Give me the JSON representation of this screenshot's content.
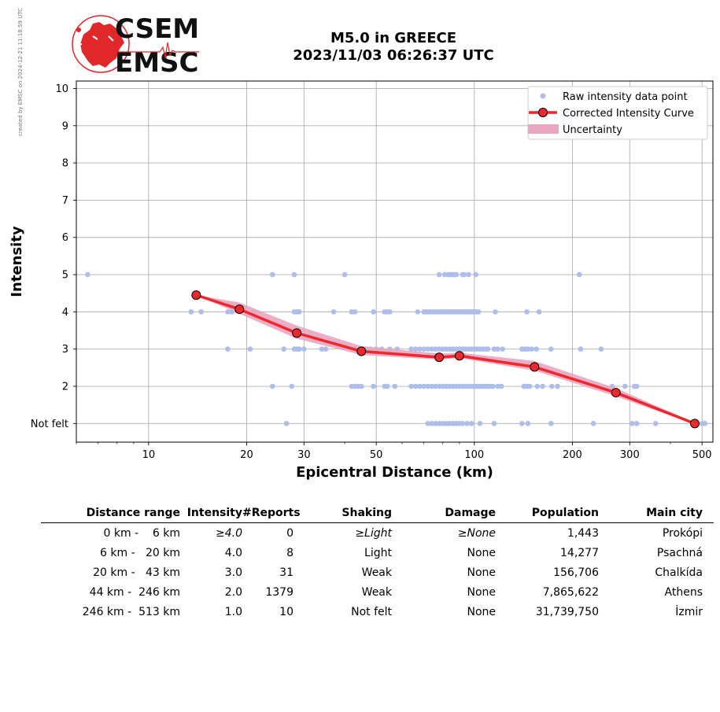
{
  "side_note": "created by EMSC on 2024-12-21 11:18:59 UTC",
  "logo": {
    "line1": "CSEM",
    "line2": "EMSC"
  },
  "chart_data": {
    "type": "scatter",
    "title": "M5.0 in GREECE",
    "subtitle": "2023/11/03 06:26:37 UTC",
    "xlabel": "Epicentral Distance (km)",
    "ylabel": "Intensity",
    "xscale": "log",
    "xlim": [
      6,
      540
    ],
    "ylim": [
      0.5,
      10.2
    ],
    "x_ticks": [
      10,
      20,
      30,
      50,
      100,
      200,
      300,
      500
    ],
    "y_ticks": [
      1,
      2,
      3,
      4,
      5,
      6,
      7,
      8,
      9,
      10
    ],
    "y_tick_labels": [
      "Not felt",
      "2",
      "3",
      "4",
      "5",
      "6",
      "7",
      "8",
      "9",
      "10"
    ],
    "grid": true,
    "legend_position": "top-right",
    "legend": [
      "Raw intensity data point",
      "Corrected Intensity Curve",
      "Uncertainty"
    ],
    "colors": {
      "raw": "#aebde9",
      "curve": "#f0282e",
      "marker_edge": "#000000",
      "uncertainty": "#e8a6c0"
    },
    "raw_points": {
      "5": [
        6.5,
        24,
        28,
        40,
        78,
        81,
        83,
        84,
        85,
        86,
        87,
        88,
        92,
        93,
        96,
        101,
        210
      ],
      "4": [
        13.5,
        14.5,
        17.5,
        18,
        21,
        28,
        28.5,
        29,
        37,
        42,
        43,
        49,
        53,
        54,
        55,
        67,
        70,
        71,
        72,
        73,
        74,
        75,
        76,
        77,
        78,
        79,
        80,
        81,
        82,
        83,
        84,
        85,
        86,
        87,
        88,
        89,
        90,
        91,
        92,
        93,
        94,
        95,
        96,
        97,
        98,
        99,
        100,
        101,
        102,
        103,
        116,
        145,
        158
      ],
      "3": [
        17.5,
        20.5,
        26,
        28,
        28.5,
        29,
        30,
        34,
        35,
        43,
        45,
        46,
        48,
        50,
        52,
        55,
        58,
        64,
        66,
        68,
        70,
        72,
        74,
        76,
        78,
        80,
        82,
        84,
        86,
        88,
        90,
        92,
        94,
        96,
        98,
        100,
        102,
        104,
        106,
        108,
        110,
        115,
        118,
        122,
        140,
        143,
        146,
        150,
        155,
        172,
        212,
        245
      ],
      "2": [
        24,
        27.5,
        42,
        43,
        44,
        45,
        49,
        53,
        54,
        57,
        64,
        66,
        68,
        70,
        72,
        74,
        76,
        78,
        80,
        82,
        84,
        86,
        88,
        90,
        92,
        94,
        96,
        98,
        100,
        102,
        104,
        106,
        108,
        110,
        112,
        114,
        118,
        121,
        142,
        145,
        148,
        156,
        162,
        173,
        180,
        265,
        290,
        310,
        315
      ],
      "1": [
        26.5,
        72,
        74,
        76,
        78,
        80,
        82,
        84,
        86,
        88,
        90,
        92,
        95,
        98,
        104,
        115,
        140,
        146,
        172,
        232,
        305,
        315,
        360,
        500,
        510
      ]
    },
    "series": [
      {
        "name": "Corrected Intensity Curve",
        "x": [
          14,
          19,
          28.5,
          45,
          78,
          90,
          153,
          272,
          475
        ],
        "y": [
          4.45,
          4.07,
          3.43,
          2.94,
          2.78,
          2.82,
          2.52,
          1.83,
          1.0
        ]
      }
    ],
    "uncertainty_band": {
      "x": [
        14,
        19,
        28.5,
        45,
        78,
        90,
        153,
        272,
        475
      ],
      "upper": [
        4.45,
        4.25,
        3.63,
        3.08,
        2.88,
        2.9,
        2.68,
        1.95,
        1.02
      ],
      "lower": [
        4.45,
        3.95,
        3.28,
        2.84,
        2.72,
        2.76,
        2.42,
        1.73,
        0.98
      ]
    }
  },
  "table": {
    "headers": [
      "Distance range",
      "Intensity",
      "#Reports",
      "Shaking",
      "Damage",
      "Population",
      "Main city"
    ],
    "rows": [
      [
        "0 km -    6 km",
        "≥4.0",
        "0",
        "≥Light",
        "≥None",
        "1,443",
        "Prokópi"
      ],
      [
        "6 km -   20 km",
        "4.0",
        "8",
        "Light",
        "None",
        "14,277",
        "Psachná"
      ],
      [
        "20 km -   43 km",
        "3.0",
        "31",
        "Weak",
        "None",
        "156,706",
        "Chalkída"
      ],
      [
        "44 km -  246 km",
        "2.0",
        "1379",
        "Weak",
        "None",
        "7,865,622",
        "Athens"
      ],
      [
        "246 km -  513 km",
        "1.0",
        "10",
        "Not felt",
        "None",
        "31,739,750",
        "İzmir"
      ]
    ]
  }
}
